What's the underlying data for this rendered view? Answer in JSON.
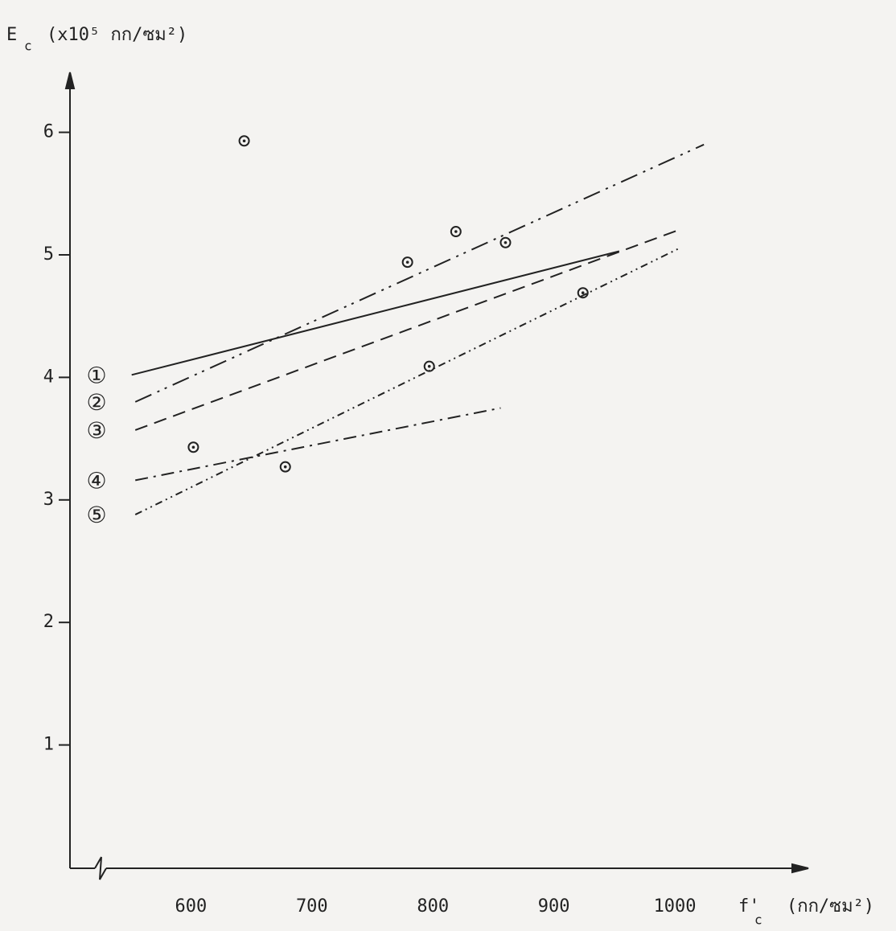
{
  "chart_data": {
    "type": "scatter",
    "ylabel": {
      "symbol": "E",
      "subscript": "c",
      "unit": "(x10⁵ กก/ซม²)"
    },
    "xlabel": {
      "symbol": "f'",
      "subscript": "c",
      "unit": "(กก/ซม²)"
    },
    "xlim": [
      500,
      1107
    ],
    "ylim": [
      0,
      6.45
    ],
    "xticks": [
      600,
      700,
      800,
      900,
      1000
    ],
    "yticks": [
      1,
      2,
      3,
      4,
      5,
      6
    ],
    "grid": false,
    "points": {
      "color": "#222",
      "x": [
        644,
        602,
        678,
        779,
        819,
        860,
        797,
        924
      ],
      "values": [
        5.93,
        3.43,
        3.27,
        4.94,
        5.19,
        5.1,
        4.09,
        4.69
      ]
    },
    "series": [
      {
        "name": "①",
        "color": "#222",
        "dash": "none",
        "x": [
          551,
          954
        ],
        "values": [
          4.02,
          5.03
        ]
      },
      {
        "name": "②",
        "color": "#222",
        "dash": "22 8 3 7 3 8",
        "x": [
          554,
          1024
        ],
        "values": [
          3.8,
          5.9
        ]
      },
      {
        "name": "③",
        "color": "#222",
        "dash": "16 9",
        "x": [
          554,
          1005
        ],
        "values": [
          3.57,
          5.21
        ]
      },
      {
        "name": "④",
        "color": "#222",
        "dash": "16 7 3 7",
        "x": [
          554,
          856
        ],
        "values": [
          3.16,
          3.75
        ]
      },
      {
        "name": "⑤",
        "color": "#222",
        "dash": "9 5 2 5 2 5",
        "x": [
          554,
          1005
        ],
        "values": [
          2.88,
          5.06
        ]
      }
    ]
  }
}
